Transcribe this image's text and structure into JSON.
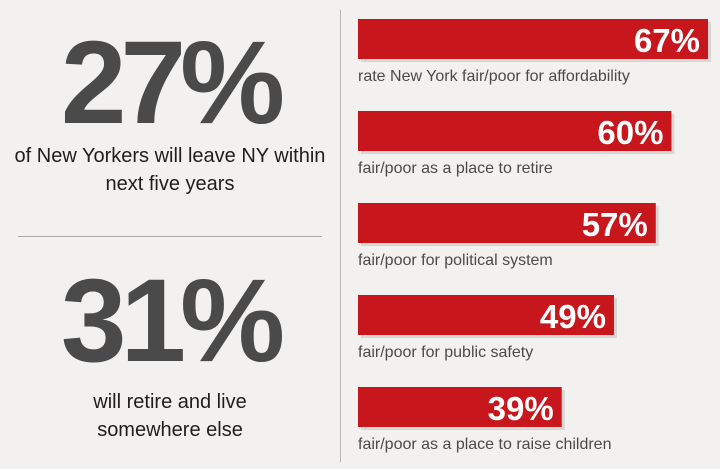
{
  "stats": [
    {
      "value": "27%",
      "caption": "of New Yorkers will leave NY within next five years"
    },
    {
      "value": "31%",
      "caption": "will retire and live somewhere else"
    }
  ],
  "colors": {
    "bar": "#c8161d",
    "shadow": "#d8d6d2",
    "background": "#f2f1ef"
  },
  "chart_data": {
    "type": "bar",
    "orientation": "horizontal",
    "categories": [
      "rate New York fair/poor for affordability",
      "fair/poor as a place to retire",
      "fair/poor for political system",
      "fair/poor for public safety",
      "fair/poor as a place to raise children"
    ],
    "values": [
      67,
      60,
      57,
      49,
      39
    ],
    "value_labels": [
      "67%",
      "60%",
      "57%",
      "49%",
      "39%"
    ],
    "title": "",
    "xlabel": "",
    "ylabel": "",
    "xlim": [
      0,
      67
    ],
    "grid": false
  }
}
